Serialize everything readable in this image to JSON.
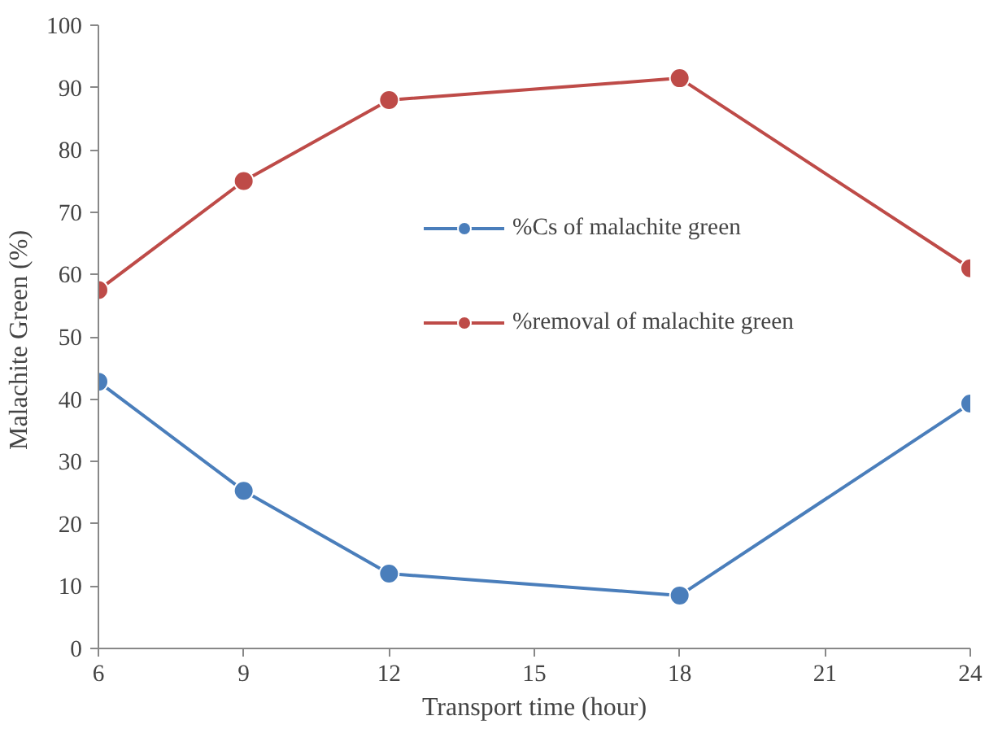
{
  "chart_data": {
    "type": "line",
    "xlabel": "Transport time (hour)",
    "ylabel": "Malachite Green  (%)",
    "x": [
      6,
      9,
      12,
      18,
      24
    ],
    "series": [
      {
        "name": "%Cs of malachite green",
        "color": "#4a7ebb",
        "values": [
          42.8,
          25.3,
          12,
          8.5,
          39.3
        ]
      },
      {
        "name": "%removal of malachite green",
        "color": "#be4b48",
        "values": [
          57.5,
          75,
          88,
          91.5,
          61
        ]
      }
    ],
    "xlim": [
      6,
      24
    ],
    "xticks": [
      6,
      9,
      12,
      15,
      18,
      21,
      24
    ],
    "ylim": [
      0,
      100
    ],
    "yticks": [
      0,
      10,
      20,
      30,
      40,
      50,
      60,
      70,
      80,
      90,
      100
    ],
    "grid": false,
    "legend": "center right",
    "marker": "circle",
    "line_style": "solid"
  }
}
